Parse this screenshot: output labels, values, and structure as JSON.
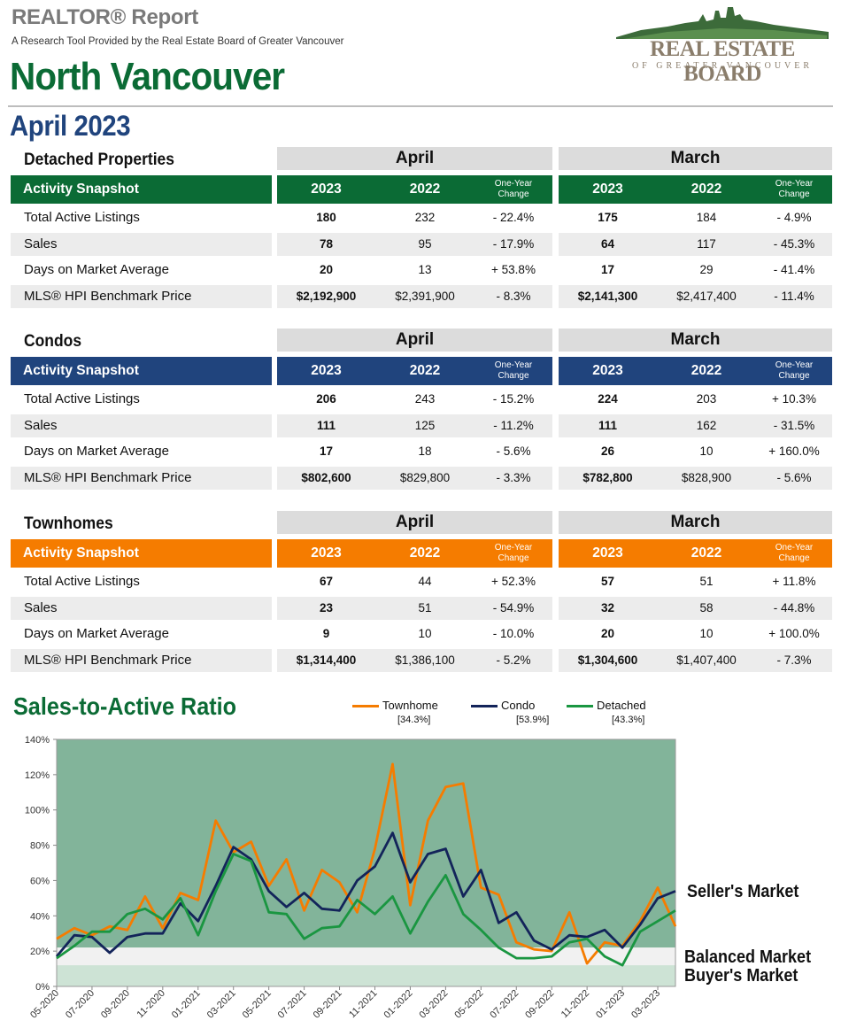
{
  "header": {
    "report_title": "REALTOR® Report",
    "subtitle": "A Research Tool Provided by the Real Estate Board of Greater Vancouver",
    "area": "North Vancouver",
    "period": "April 2023",
    "logo": {
      "name": "REAL ESTATE BOARD",
      "sub": "OF GREATER VANCOUVER"
    }
  },
  "colors": {
    "detached": "#0b6b35",
    "condo": "#20447d",
    "townhome": "#f57c00"
  },
  "common": {
    "current_month": "April",
    "previous_month": "March",
    "snapshot_label": "Activity Snapshot",
    "year_current": "2023",
    "year_prior": "2022",
    "change_label_1": "One-Year",
    "change_label_2": "Change"
  },
  "sections": [
    {
      "title": "Detached Properties",
      "rows": [
        {
          "label": "Total Active Listings",
          "apr_2023": "180",
          "apr_2022": "232",
          "apr_change": "- 22.4%",
          "mar_2023": "175",
          "mar_2022": "184",
          "mar_change": "- 4.9%"
        },
        {
          "label": "Sales",
          "apr_2023": "78",
          "apr_2022": "95",
          "apr_change": "- 17.9%",
          "mar_2023": "64",
          "mar_2022": "117",
          "mar_change": "- 45.3%"
        },
        {
          "label": "Days on Market Average",
          "apr_2023": "20",
          "apr_2022": "13",
          "apr_change": "+ 53.8%",
          "mar_2023": "17",
          "mar_2022": "29",
          "mar_change": "- 41.4%"
        },
        {
          "label": "MLS® HPI Benchmark Price",
          "apr_2023": "$2,192,900",
          "apr_2022": "$2,391,900",
          "apr_change": "- 8.3%",
          "mar_2023": "$2,141,300",
          "mar_2022": "$2,417,400",
          "mar_change": "- 11.4%"
        }
      ]
    },
    {
      "title": "Condos",
      "rows": [
        {
          "label": "Total Active Listings",
          "apr_2023": "206",
          "apr_2022": "243",
          "apr_change": "- 15.2%",
          "mar_2023": "224",
          "mar_2022": "203",
          "mar_change": "+ 10.3%"
        },
        {
          "label": "Sales",
          "apr_2023": "111",
          "apr_2022": "125",
          "apr_change": "- 11.2%",
          "mar_2023": "111",
          "mar_2022": "162",
          "mar_change": "- 31.5%"
        },
        {
          "label": "Days on Market Average",
          "apr_2023": "17",
          "apr_2022": "18",
          "apr_change": "- 5.6%",
          "mar_2023": "26",
          "mar_2022": "10",
          "mar_change": "+ 160.0%"
        },
        {
          "label": "MLS® HPI Benchmark Price",
          "apr_2023": "$802,600",
          "apr_2022": "$829,800",
          "apr_change": "- 3.3%",
          "mar_2023": "$782,800",
          "mar_2022": "$828,900",
          "mar_change": "- 5.6%"
        }
      ]
    },
    {
      "title": "Townhomes",
      "rows": [
        {
          "label": "Total Active Listings",
          "apr_2023": "67",
          "apr_2022": "44",
          "apr_change": "+ 52.3%",
          "mar_2023": "57",
          "mar_2022": "51",
          "mar_change": "+ 11.8%"
        },
        {
          "label": "Sales",
          "apr_2023": "23",
          "apr_2022": "51",
          "apr_change": "- 54.9%",
          "mar_2023": "32",
          "mar_2022": "58",
          "mar_change": "- 44.8%"
        },
        {
          "label": "Days on Market Average",
          "apr_2023": "9",
          "apr_2022": "10",
          "apr_change": "- 10.0%",
          "mar_2023": "20",
          "mar_2022": "10",
          "mar_change": "+ 100.0%"
        },
        {
          "label": "MLS® HPI Benchmark Price",
          "apr_2023": "$1,314,400",
          "apr_2022": "$1,386,100",
          "apr_change": "- 5.2%",
          "mar_2023": "$1,304,600",
          "mar_2022": "$1,407,400",
          "mar_change": "- 7.3%"
        }
      ]
    }
  ],
  "chart_data": {
    "type": "line",
    "title": "Sales-to-Active Ratio",
    "x": [
      "05-2020",
      "06-2020",
      "07-2020",
      "08-2020",
      "09-2020",
      "10-2020",
      "11-2020",
      "12-2020",
      "01-2021",
      "02-2021",
      "03-2021",
      "04-2021",
      "05-2021",
      "06-2021",
      "07-2021",
      "08-2021",
      "09-2021",
      "10-2021",
      "11-2021",
      "12-2021",
      "01-2022",
      "02-2022",
      "03-2022",
      "04-2022",
      "05-2022",
      "06-2022",
      "07-2022",
      "08-2022",
      "09-2022",
      "10-2022",
      "11-2022",
      "12-2022",
      "01-2023",
      "02-2023",
      "03-2023",
      "04-2023"
    ],
    "x_tick_labels": [
      "05-2020",
      "07-2020",
      "09-2020",
      "11-2020",
      "01-2021",
      "03-2021",
      "05-2021",
      "07-2021",
      "09-2021",
      "11-2021",
      "01-2022",
      "03-2022",
      "05-2022",
      "07-2022",
      "09-2022",
      "11-2022",
      "01-2023",
      "03-2023"
    ],
    "y_tick_labels": [
      "0%",
      "20%",
      "40%",
      "60%",
      "80%",
      "100%",
      "120%",
      "140%"
    ],
    "ylim": [
      0,
      140
    ],
    "series": [
      {
        "name": "Townhome",
        "legend_value": "[34.3%]",
        "color": "#f57c00",
        "values": [
          27,
          33,
          29,
          34,
          32,
          51,
          33,
          53,
          49,
          94,
          76,
          82,
          57,
          72,
          43,
          66,
          59,
          42,
          78,
          126,
          46,
          94,
          113,
          115,
          56,
          52,
          25,
          21,
          20,
          42,
          13,
          25,
          23,
          37,
          56,
          34
        ]
      },
      {
        "name": "Condo",
        "legend_value": "[53.9%]",
        "color": "#13245a",
        "values": [
          17,
          29,
          28,
          19,
          28,
          30,
          30,
          47,
          37,
          57,
          79,
          72,
          54,
          45,
          53,
          44,
          43,
          60,
          68,
          87,
          59,
          75,
          78,
          51,
          66,
          36,
          42,
          26,
          21,
          29,
          28,
          32,
          22,
          35,
          50,
          54
        ]
      },
      {
        "name": "Detached",
        "legend_value": "[43.3%]",
        "color": "#1a9641",
        "values": [
          16,
          23,
          31,
          31,
          41,
          44,
          38,
          50,
          29,
          54,
          75,
          71,
          42,
          41,
          27,
          33,
          34,
          49,
          41,
          51,
          30,
          48,
          63,
          41,
          32,
          22,
          16,
          16,
          17,
          25,
          27,
          17,
          12,
          31,
          37,
          43
        ]
      }
    ],
    "zones": [
      {
        "label": "Seller's Market",
        "from": 22,
        "to": 140
      },
      {
        "label": "Balanced Market",
        "from": 12,
        "to": 22
      },
      {
        "label": "Buyer's Market",
        "from": 0,
        "to": 12
      }
    ]
  }
}
